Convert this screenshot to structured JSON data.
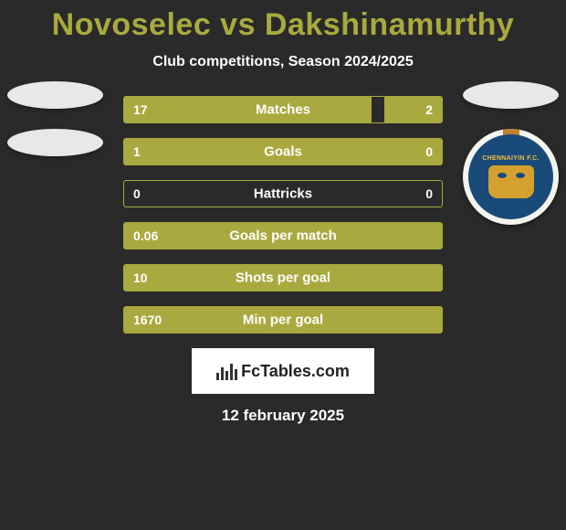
{
  "title": "Novoselec vs Dakshinamurthy",
  "subtitle": "Club competitions, Season 2024/2025",
  "colors": {
    "accent": "#a9a93f",
    "background": "#2a2a2a",
    "text": "#ffffff",
    "badge_bg": "#e8e8e8",
    "logo_outer": "#f5f5f0",
    "logo_inner": "#1a4a7a",
    "logo_gold": "#d4a030",
    "fctables_bg": "#ffffff",
    "fctables_text": "#222222"
  },
  "left_club": {
    "logo_text": ""
  },
  "right_club": {
    "logo_text": "CHENNAIYIN F.C."
  },
  "stats": [
    {
      "label": "Matches",
      "left_val": "17",
      "right_val": "2",
      "left_pct": 78,
      "right_pct": 18
    },
    {
      "label": "Goals",
      "left_val": "1",
      "right_val": "0",
      "left_pct": 100,
      "right_pct": 0
    },
    {
      "label": "Hattricks",
      "left_val": "0",
      "right_val": "0",
      "left_pct": 0,
      "right_pct": 0
    },
    {
      "label": "Goals per match",
      "left_val": "0.06",
      "right_val": "",
      "left_pct": 100,
      "right_pct": 0
    },
    {
      "label": "Shots per goal",
      "left_val": "10",
      "right_val": "",
      "left_pct": 100,
      "right_pct": 0
    },
    {
      "label": "Min per goal",
      "left_val": "1670",
      "right_val": "",
      "left_pct": 100,
      "right_pct": 0
    }
  ],
  "branding": {
    "text": "FcTables.com"
  },
  "date": "12 february 2025"
}
